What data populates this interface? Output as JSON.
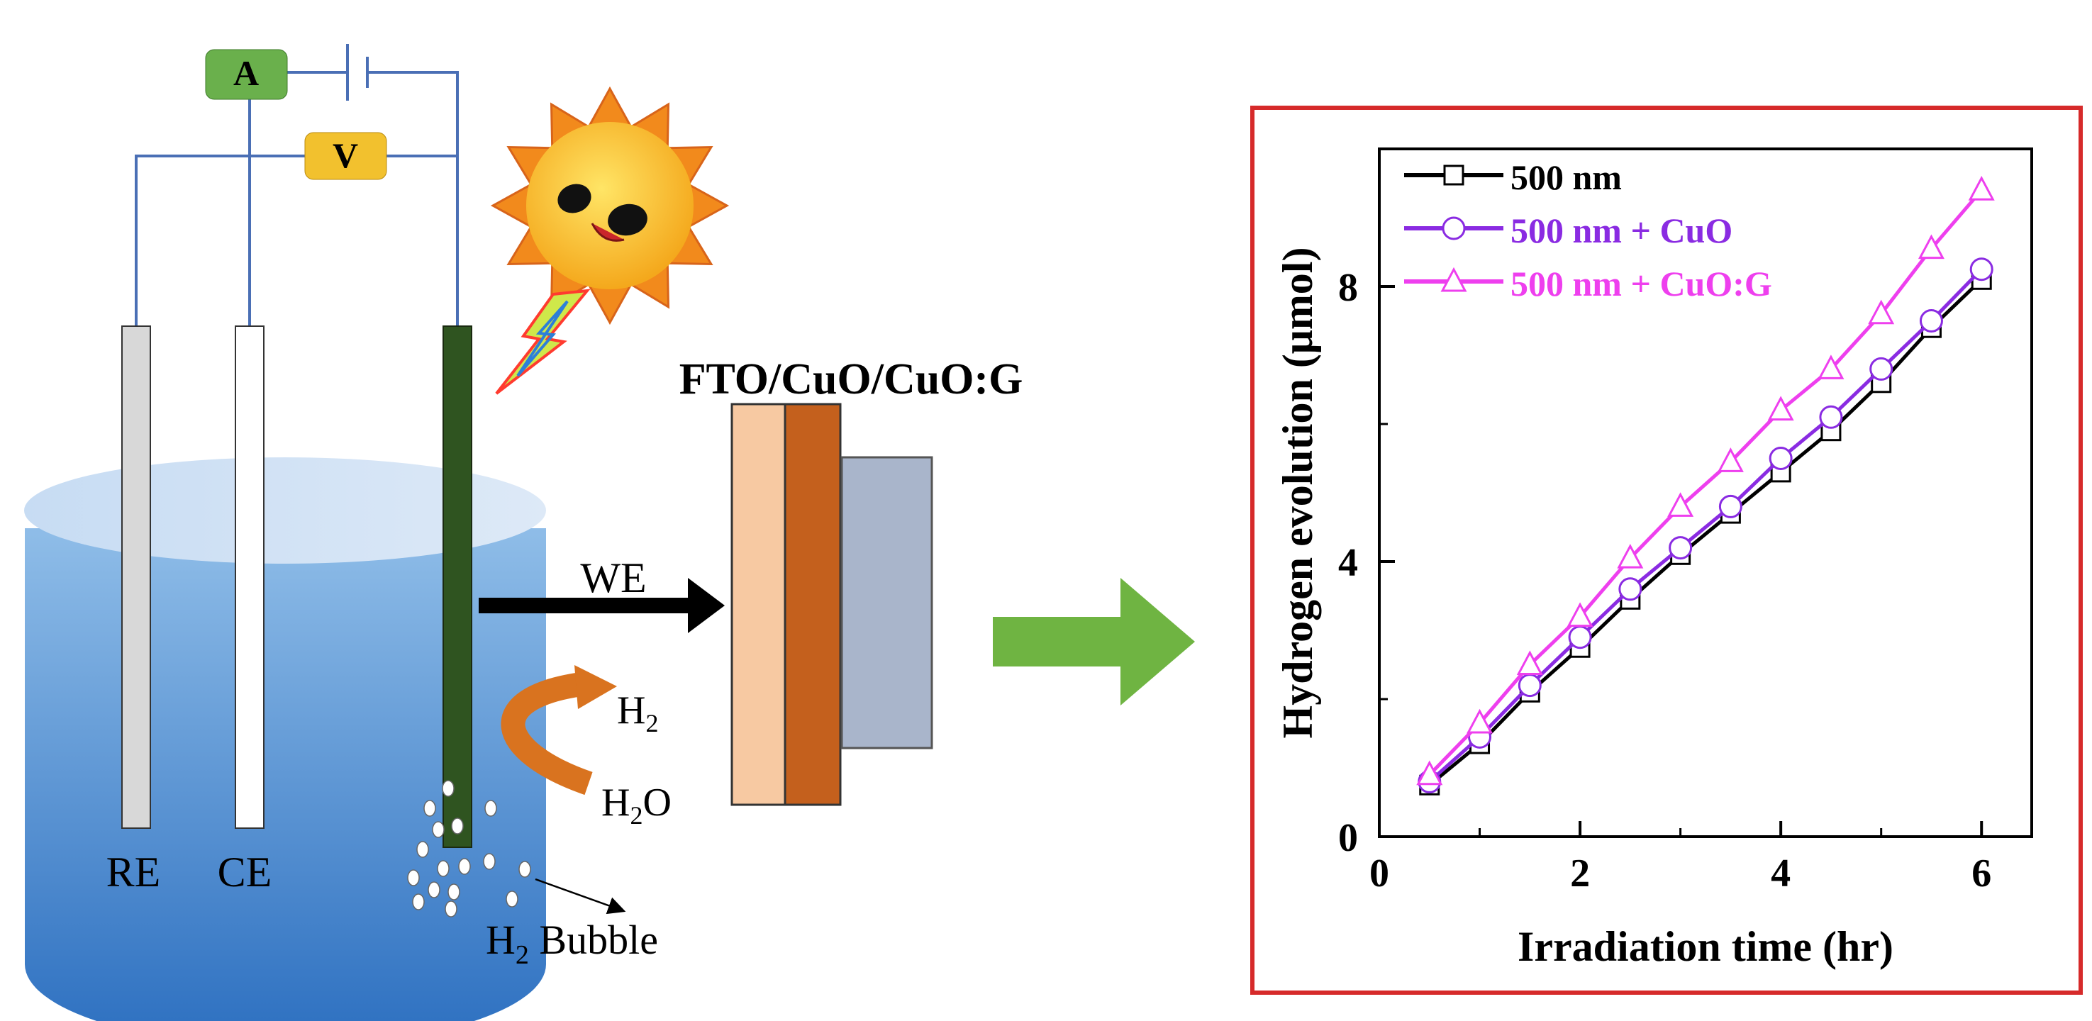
{
  "schematic": {
    "meter_a": "A",
    "meter_v": "V",
    "electrode_re": "RE",
    "electrode_ce": "CE",
    "we_label": "WE",
    "layers_title": "FTO/CuO/CuO:G",
    "h2_label": "H",
    "h2_sub": "2",
    "h2o_label_h": "H",
    "h2o_sub": "2",
    "h2o_label_o": "O",
    "bubble_h": "H",
    "bubble_sub": "2",
    "bubble_text": " Bubble",
    "colors": {
      "wire": "#4a6fb5",
      "meter_a": "#6ab04c",
      "meter_v": "#f2c12e",
      "we_electrode": "#2f5420",
      "fto_layer": "#f7c9a2",
      "cuo_layer": "#c4601d",
      "cuog_layer": "#a9b5cb",
      "arrow_green": "#6fb442",
      "curved_arrow": "#d9731f",
      "frame_red": "#d62a2a"
    }
  },
  "chart_data": {
    "type": "line",
    "xlabel": "Irradiation time (hr)",
    "ylabel": "Hydrogen evolution (μmol)",
    "xlim": [
      0,
      6.5
    ],
    "ylim": [
      0,
      10
    ],
    "xticks": [
      0,
      2,
      4,
      6
    ],
    "yticks": [
      0,
      4,
      8
    ],
    "legend_position": "top-left",
    "x": [
      0.5,
      1.0,
      1.5,
      2.0,
      2.5,
      3.0,
      3.5,
      4.0,
      4.5,
      5.0,
      5.5,
      6.0
    ],
    "series": [
      {
        "name": "500 nm",
        "marker": "square",
        "color": "#000000",
        "values": [
          0.75,
          1.35,
          2.1,
          2.75,
          3.45,
          4.1,
          4.7,
          5.3,
          5.9,
          6.6,
          7.4,
          8.1
        ]
      },
      {
        "name": "500 nm + CuO",
        "marker": "circle",
        "color": "#8a2be2",
        "values": [
          0.8,
          1.45,
          2.2,
          2.9,
          3.6,
          4.2,
          4.8,
          5.5,
          6.1,
          6.8,
          7.5,
          8.25
        ]
      },
      {
        "name": "500 nm + CuO:G",
        "marker": "triangle",
        "color": "#ee3fee",
        "values": [
          0.9,
          1.65,
          2.5,
          3.2,
          4.05,
          4.8,
          5.45,
          6.2,
          6.8,
          7.6,
          8.55,
          9.4
        ]
      }
    ]
  }
}
